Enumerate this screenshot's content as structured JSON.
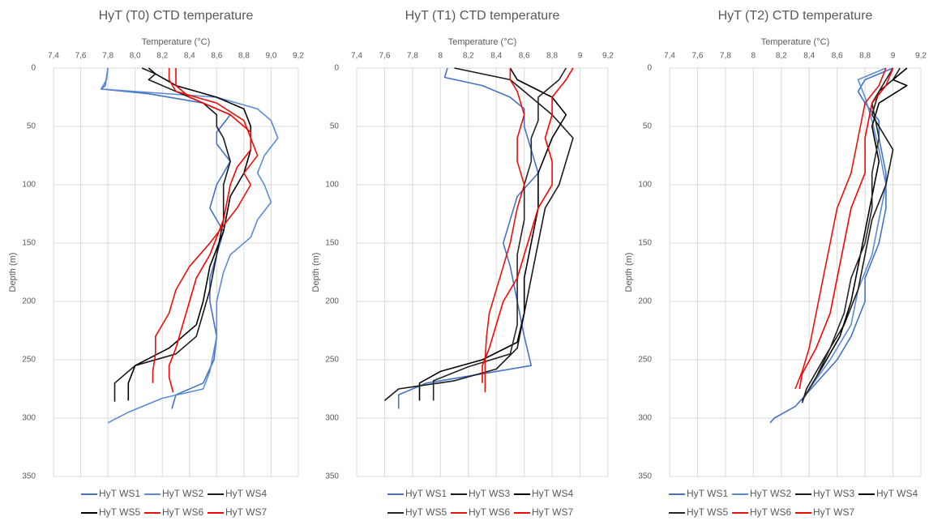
{
  "chart_data": [
    {
      "type": "line",
      "title": "HyT (T0) CTD temperature",
      "x_label": "Temperature (°C)",
      "y_label": "Depth (m)",
      "xlim": [
        7.4,
        9.2
      ],
      "xticks": [
        {
          "value": 7.4,
          "label": "7,4"
        },
        {
          "value": 7.6,
          "label": "7,6"
        },
        {
          "value": 7.8,
          "label": "7,8"
        },
        {
          "value": 8.0,
          "label": "8,0"
        },
        {
          "value": 8.2,
          "label": "8,2"
        },
        {
          "value": 8.4,
          "label": "8,4"
        },
        {
          "value": 8.6,
          "label": "8,6"
        },
        {
          "value": 8.8,
          "label": "8,8"
        },
        {
          "value": 9.0,
          "label": "9,0"
        },
        {
          "value": 9.2,
          "label": "9,2"
        }
      ],
      "ylim": [
        0,
        350
      ],
      "yticks": [
        0,
        50,
        100,
        150,
        200,
        250,
        300,
        350
      ],
      "y_inverted": true,
      "grid": true,
      "legend": "bottom",
      "series": [
        {
          "name": "HyT WS1",
          "color": "#4472c4",
          "x": [
            7.8,
            7.78,
            7.75,
            8.1,
            8.5,
            8.7,
            8.6,
            8.6,
            8.7,
            8.6,
            8.55,
            8.65,
            8.6,
            8.55,
            8.55,
            8.6,
            8.58,
            8.5,
            8.3,
            8.27
          ],
          "values": [
            0,
            15,
            18,
            22,
            30,
            40,
            55,
            65,
            80,
            100,
            120,
            140,
            160,
            180,
            200,
            230,
            250,
            270,
            280,
            292
          ]
        },
        {
          "name": "HyT WS2",
          "color": "#5b8bd8",
          "x": [
            7.8,
            7.79,
            7.75,
            8.6,
            8.9,
            9.0,
            9.05,
            8.95,
            8.9,
            8.95,
            9.0,
            8.9,
            8.85,
            8.7,
            8.65,
            8.6,
            8.6,
            8.55,
            8.5,
            8.2,
            7.95,
            7.8
          ],
          "values": [
            0,
            10,
            18,
            25,
            35,
            45,
            60,
            75,
            90,
            100,
            115,
            130,
            145,
            160,
            175,
            200,
            230,
            260,
            275,
            283,
            295,
            304
          ]
        },
        {
          "name": "HyT WS4",
          "color": "#1a1a1a",
          "x": [
            8.05,
            8.15,
            8.1,
            8.3,
            8.5,
            8.6,
            8.6,
            8.65,
            8.7,
            8.65,
            8.65,
            8.6,
            8.55,
            8.5,
            8.45,
            8.3,
            8.0,
            7.85,
            7.85
          ],
          "values": [
            0,
            5,
            10,
            20,
            30,
            40,
            50,
            60,
            80,
            100,
            130,
            160,
            190,
            210,
            230,
            245,
            255,
            270,
            286
          ]
        },
        {
          "name": "HyT WS5",
          "color": "#000000",
          "x": [
            8.1,
            8.15,
            8.3,
            8.6,
            8.8,
            8.85,
            8.85,
            8.8,
            8.7,
            8.65,
            8.55,
            8.5,
            8.45,
            8.25,
            8.0,
            7.95,
            7.95
          ],
          "values": [
            0,
            5,
            15,
            25,
            35,
            50,
            70,
            90,
            110,
            140,
            170,
            200,
            220,
            240,
            255,
            270,
            285
          ]
        },
        {
          "name": "HyT WS6",
          "color": "#e8120c",
          "x": [
            8.25,
            8.25,
            8.3,
            8.6,
            8.8,
            8.85,
            8.9,
            8.8,
            8.85,
            8.75,
            8.55,
            8.4,
            8.3,
            8.25,
            8.15,
            8.15,
            8.13,
            8.13
          ],
          "values": [
            0,
            10,
            20,
            30,
            45,
            60,
            75,
            90,
            100,
            120,
            150,
            170,
            190,
            210,
            230,
            245,
            260,
            270
          ]
        },
        {
          "name": "HyT WS7",
          "color": "#ff0000",
          "x": [
            8.3,
            8.3,
            8.4,
            8.7,
            8.85,
            8.85,
            8.75,
            8.7,
            8.65,
            8.55,
            8.45,
            8.4,
            8.35,
            8.3,
            8.25,
            8.25,
            8.28
          ],
          "values": [
            0,
            15,
            25,
            40,
            55,
            70,
            85,
            100,
            130,
            160,
            180,
            200,
            220,
            240,
            255,
            265,
            278
          ]
        }
      ]
    },
    {
      "type": "line",
      "title": "HyT (T1) CTD temperature",
      "x_label": "Temperature (°C)",
      "y_label": "Depth (m)",
      "xlim": [
        7.4,
        9.2
      ],
      "xticks": [
        {
          "value": 7.4,
          "label": "7,4"
        },
        {
          "value": 7.6,
          "label": "7,6"
        },
        {
          "value": 7.8,
          "label": "7,8"
        },
        8,
        {
          "value": 8.2,
          "label": "8,2"
        },
        {
          "value": 8.4,
          "label": "8,4"
        },
        {
          "value": 8.6,
          "label": "8,6"
        },
        {
          "value": 8.8,
          "label": "8,8"
        },
        9,
        {
          "value": 9.2,
          "label": "9,2"
        }
      ],
      "ylim": [
        0,
        350
      ],
      "yticks": [
        0,
        50,
        100,
        150,
        200,
        250,
        300,
        350
      ],
      "y_inverted": true,
      "grid": true,
      "legend": "bottom",
      "series": [
        {
          "name": "HyT WS1",
          "color": "#4472c4",
          "x": [
            8.05,
            8.03,
            8.3,
            8.5,
            8.6,
            8.6,
            8.65,
            8.7,
            8.55,
            8.5,
            8.45,
            8.5,
            8.55,
            8.6,
            8.65,
            8.3,
            7.9,
            7.7,
            7.7
          ],
          "values": [
            0,
            8,
            15,
            25,
            35,
            50,
            70,
            90,
            110,
            130,
            150,
            170,
            200,
            230,
            255,
            262,
            270,
            280,
            292
          ]
        },
        {
          "name": "HyT WS3",
          "color": "#1a1a1a",
          "x": [
            8.1,
            8.5,
            8.6,
            8.8,
            8.95,
            8.9,
            8.85,
            8.75,
            8.7,
            8.65,
            8.6,
            8.55,
            8.4,
            8.1,
            7.7,
            7.6
          ],
          "values": [
            0,
            10,
            20,
            40,
            60,
            80,
            100,
            120,
            150,
            180,
            210,
            240,
            258,
            268,
            275,
            285
          ]
        },
        {
          "name": "HyT WS4",
          "color": "#000000",
          "x": [
            8.5,
            8.55,
            8.8,
            8.9,
            8.8,
            8.7,
            8.7,
            8.65,
            8.6,
            8.6,
            8.55,
            8.3,
            8.0,
            7.85,
            7.85
          ],
          "values": [
            0,
            10,
            25,
            40,
            60,
            90,
            120,
            150,
            180,
            210,
            235,
            250,
            260,
            270,
            285
          ]
        },
        {
          "name": "HyT WS5",
          "color": "#262626",
          "x": [
            8.9,
            8.85,
            8.7,
            8.7,
            8.65,
            8.65,
            8.6,
            8.6,
            8.55,
            8.55,
            8.55,
            8.5,
            8.2,
            7.95,
            7.95
          ],
          "values": [
            0,
            10,
            25,
            45,
            60,
            80,
            100,
            130,
            160,
            190,
            220,
            245,
            256,
            268,
            285
          ]
        },
        {
          "name": "HyT WS6",
          "color": "#e8120c",
          "x": [
            8.5,
            8.5,
            8.55,
            8.6,
            8.55,
            8.55,
            8.6,
            8.55,
            8.5,
            8.45,
            8.4,
            8.35,
            8.33,
            8.32,
            8.32
          ],
          "values": [
            0,
            10,
            20,
            40,
            60,
            80,
            100,
            120,
            150,
            170,
            190,
            210,
            230,
            250,
            278
          ]
        },
        {
          "name": "HyT WS7",
          "color": "#ff0000",
          "x": [
            8.95,
            8.9,
            8.8,
            8.8,
            8.75,
            8.8,
            8.8,
            8.7,
            8.65,
            8.6,
            8.55,
            8.45,
            8.4,
            8.35,
            8.3,
            8.3
          ],
          "values": [
            0,
            10,
            25,
            40,
            60,
            80,
            100,
            120,
            140,
            160,
            180,
            200,
            220,
            240,
            255,
            270
          ]
        }
      ]
    },
    {
      "type": "line",
      "title": "HyT (T2) CTD temperature",
      "x_label": "Temperature (°C)",
      "y_label": "Depth (m)",
      "xlim": [
        7.4,
        9.2
      ],
      "xticks": [
        {
          "value": 7.4,
          "label": "7,4"
        },
        {
          "value": 7.6,
          "label": "7,6"
        },
        {
          "value": 7.8,
          "label": "7,8"
        },
        8,
        {
          "value": 8.2,
          "label": "8,2"
        },
        {
          "value": 8.4,
          "label": "8,4"
        },
        {
          "value": 8.6,
          "label": "8,6"
        },
        {
          "value": 8.8,
          "label": "8,8"
        },
        9,
        {
          "value": 9.2,
          "label": "9,2"
        }
      ],
      "ylim": [
        0,
        350
      ],
      "yticks": [
        0,
        50,
        100,
        150,
        200,
        250,
        300,
        350
      ],
      "y_inverted": true,
      "grid": true,
      "legend": "bottom",
      "series": [
        {
          "name": "HyT WS1",
          "color": "#4472c4",
          "x": [
            9.0,
            8.8,
            8.75,
            8.8,
            8.9,
            8.9,
            8.95,
            8.95,
            8.9,
            8.8,
            8.8,
            8.7,
            8.6,
            8.45,
            8.3,
            8.15,
            8.12
          ],
          "values": [
            0,
            10,
            20,
            30,
            45,
            60,
            90,
            120,
            150,
            180,
            200,
            230,
            250,
            270,
            290,
            300,
            304
          ]
        },
        {
          "name": "HyT WS2",
          "color": "#5b8bd8",
          "x": [
            8.95,
            8.75,
            8.8,
            8.85,
            8.9,
            8.95,
            8.9,
            8.85,
            8.75,
            8.7,
            8.55,
            8.4,
            8.35
          ],
          "values": [
            0,
            10,
            25,
            45,
            70,
            100,
            130,
            160,
            190,
            220,
            250,
            275,
            285
          ]
        },
        {
          "name": "HyT WS3",
          "color": "#1a1a1a",
          "x": [
            9.05,
            9.0,
            8.9,
            8.85,
            9.0,
            8.95,
            8.85,
            8.8,
            8.75,
            8.65,
            8.5,
            8.38,
            8.35
          ],
          "values": [
            0,
            10,
            20,
            40,
            70,
            100,
            130,
            160,
            190,
            220,
            250,
            275,
            287
          ]
        },
        {
          "name": "HyT WS4",
          "color": "#000000",
          "x": [
            9.1,
            9.0,
            9.1,
            8.9,
            8.85,
            8.9,
            8.85,
            8.8,
            8.75,
            8.7,
            8.62,
            8.5,
            8.4,
            8.35
          ],
          "values": [
            0,
            10,
            15,
            30,
            50,
            80,
            110,
            140,
            170,
            200,
            230,
            255,
            275,
            285
          ]
        },
        {
          "name": "HyT WS5",
          "color": "#262626",
          "x": [
            9.0,
            8.95,
            8.85,
            8.9,
            8.85,
            8.85,
            8.8,
            8.7,
            8.65,
            8.55,
            8.45,
            8.35
          ],
          "values": [
            0,
            10,
            30,
            60,
            90,
            120,
            150,
            180,
            210,
            240,
            265,
            285
          ]
        },
        {
          "name": "HyT WS6",
          "color": "#e8120c",
          "x": [
            8.95,
            8.9,
            8.8,
            8.75,
            8.7,
            8.6,
            8.55,
            8.5,
            8.45,
            8.4,
            8.35,
            8.3
          ],
          "values": [
            0,
            15,
            30,
            60,
            90,
            120,
            150,
            180,
            210,
            240,
            260,
            275
          ]
        },
        {
          "name": "HyT WS7",
          "color": "#ff0000",
          "x": [
            9.0,
            8.95,
            8.85,
            8.8,
            8.8,
            8.7,
            8.65,
            8.6,
            8.55,
            8.45,
            8.35,
            8.33
          ],
          "values": [
            0,
            15,
            30,
            60,
            90,
            120,
            150,
            180,
            210,
            240,
            262,
            275
          ]
        }
      ]
    }
  ]
}
